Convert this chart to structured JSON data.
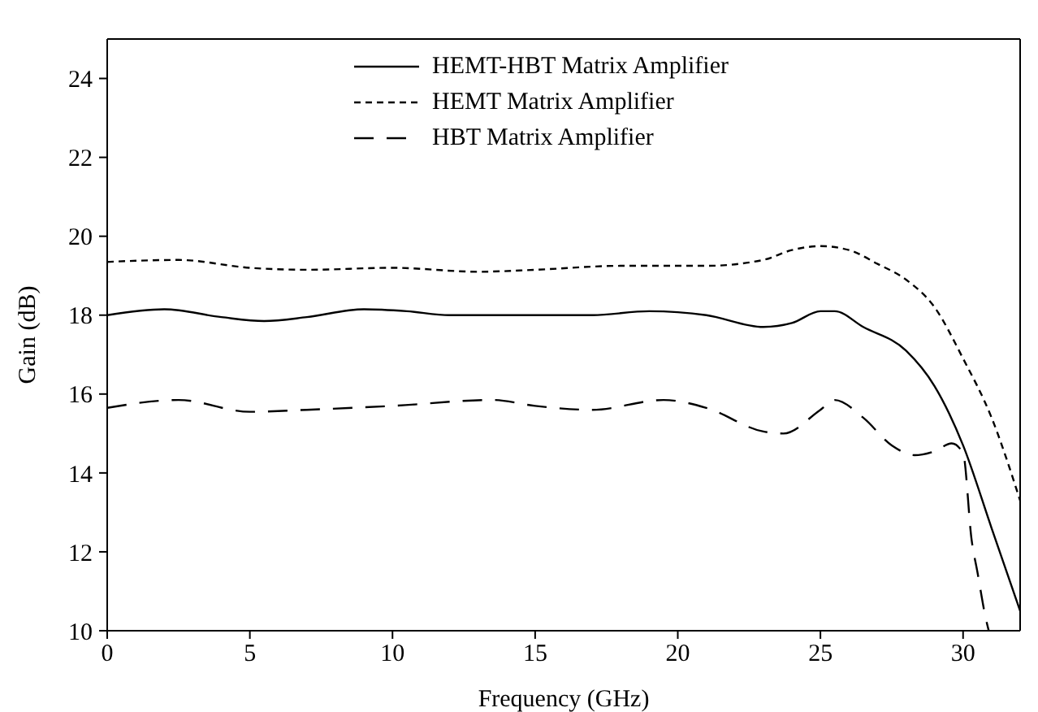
{
  "chart_data": {
    "type": "line",
    "xlabel": "Frequency (GHz)",
    "ylabel": "Gain (dB)",
    "xlim": [
      0,
      32
    ],
    "xticks": [
      0,
      5,
      10,
      15,
      20,
      25,
      30
    ],
    "ylim": [
      10,
      25
    ],
    "yticks": [
      10,
      12,
      14,
      16,
      18,
      20,
      22,
      24
    ],
    "grid": false,
    "legend": "top",
    "marker": "none",
    "series": [
      {
        "name": "HEMT-HBT Matrix Amplifier",
        "color": "#000000",
        "line_style": "solid",
        "x": [
          0,
          2,
          4,
          5.5,
          7,
          9,
          10.5,
          12,
          15,
          17,
          19,
          21,
          23,
          24,
          25,
          25.5,
          26.5,
          28,
          29,
          30,
          31,
          32
        ],
        "values": [
          18.0,
          18.15,
          17.95,
          17.85,
          17.95,
          18.15,
          18.1,
          18.0,
          18.0,
          18.0,
          18.1,
          18.0,
          17.7,
          17.8,
          18.1,
          18.1,
          17.7,
          17.1,
          16.2,
          14.7,
          12.6,
          10.5
        ]
      },
      {
        "name": "HEMT Matrix Amplifier",
        "color": "#000000",
        "line_style": "dotted",
        "x": [
          0,
          2.5,
          5,
          7,
          10,
          13,
          15,
          18,
          21,
          23,
          24,
          25,
          26,
          27,
          28,
          29,
          30,
          31,
          32
        ],
        "values": [
          19.35,
          19.4,
          19.2,
          19.15,
          19.2,
          19.1,
          19.15,
          19.25,
          19.25,
          19.4,
          19.65,
          19.75,
          19.65,
          19.3,
          18.9,
          18.2,
          16.9,
          15.4,
          13.3
        ]
      },
      {
        "name": "HBT Matrix Amplifier",
        "color": "#000000",
        "line_style": "dashed",
        "x": [
          0,
          2.5,
          5,
          7,
          10,
          13.5,
          15,
          17,
          19.5,
          21,
          23,
          23.7,
          25,
          25.5,
          26.5,
          27.5,
          28.3,
          29,
          29.6,
          30,
          30.3,
          30.5,
          30.8,
          30.9
        ],
        "values": [
          15.65,
          15.85,
          15.55,
          15.6,
          15.7,
          15.85,
          15.7,
          15.6,
          15.85,
          15.65,
          15.05,
          15.0,
          15.6,
          15.85,
          15.4,
          14.7,
          14.45,
          14.55,
          14.75,
          14.5,
          12.3,
          11.5,
          10.3,
          10.0
        ]
      }
    ]
  }
}
